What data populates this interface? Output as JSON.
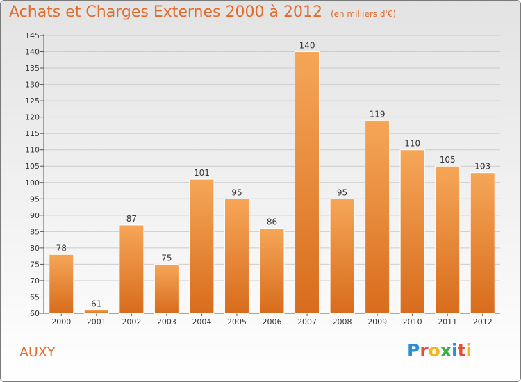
{
  "title": "Achats et Charges Externes 2000 à 2012",
  "subtitle": "(en milliers d'€)",
  "commune": "AUXY",
  "logo": "Proxiti",
  "colors": {
    "bar_light": "#f6a658",
    "bar_dark": "#d86c1c",
    "title": "#e06c2c",
    "grid": "#cccccc"
  },
  "chart_data": {
    "type": "bar",
    "title": "Achats et Charges Externes 2000 à 2012",
    "subtitle": "(en milliers d'€)",
    "xlabel": "",
    "ylabel": "",
    "categories": [
      "2000",
      "2001",
      "2002",
      "2003",
      "2004",
      "2005",
      "2006",
      "2007",
      "2008",
      "2009",
      "2010",
      "2011",
      "2012"
    ],
    "values": [
      78,
      61,
      87,
      75,
      101,
      95,
      86,
      140,
      95,
      119,
      110,
      105,
      103
    ],
    "ylim": [
      60,
      145
    ],
    "yticks": [
      60,
      65,
      70,
      75,
      80,
      85,
      90,
      95,
      100,
      105,
      110,
      115,
      120,
      125,
      130,
      135,
      140,
      145
    ],
    "grid": true,
    "data_labels": true
  }
}
